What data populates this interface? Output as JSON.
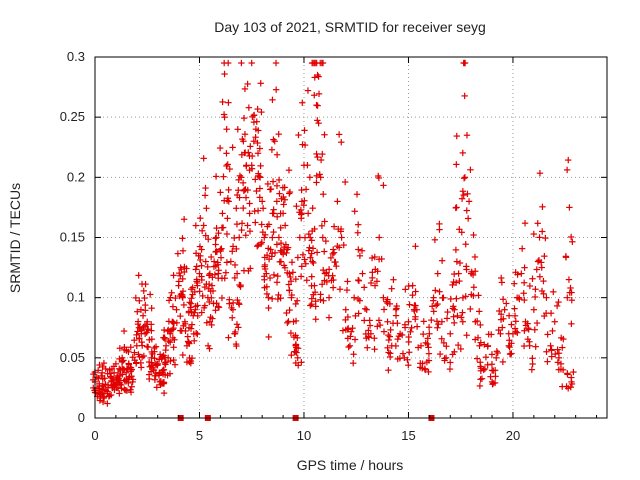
{
  "chart_data": {
    "type": "scatter",
    "title": "Day 103 of 2021, SRMTID for receiver seyg",
    "xlabel": "GPS time / hours",
    "ylabel": "SRMTID / TECUs",
    "xlim": [
      0,
      24.5
    ],
    "ylim": [
      0,
      0.3
    ],
    "xticks": [
      0,
      5,
      10,
      15,
      20
    ],
    "yticks": [
      0,
      0.05,
      0.1,
      0.15,
      0.2,
      0.25,
      0.3
    ],
    "xtick_labels": [
      "0",
      "5",
      "10",
      "15",
      "20"
    ],
    "ytick_labels": [
      "0",
      "0.05",
      "0.1",
      "0.15",
      "0.2",
      "0.25",
      "0.3"
    ],
    "grid": true,
    "marker": "+",
    "color": "#e00000",
    "zero_markers_x": [
      4.1,
      5.4,
      9.6,
      16.1
    ],
    "series": [
      {
        "name": "SRMTID",
        "points": [
          [
            0.0,
            0.03
          ],
          [
            0.1,
            0.025
          ],
          [
            0.2,
            0.02
          ],
          [
            0.3,
            0.035
          ],
          [
            0.4,
            0.018
          ],
          [
            0.5,
            0.028
          ],
          [
            0.6,
            0.022
          ],
          [
            0.7,
            0.04
          ],
          [
            0.8,
            0.03
          ],
          [
            0.9,
            0.026
          ],
          [
            1.0,
            0.045
          ],
          [
            1.1,
            0.035
          ],
          [
            1.2,
            0.028
          ],
          [
            1.3,
            0.05
          ],
          [
            1.4,
            0.04
          ],
          [
            1.5,
            0.032
          ],
          [
            1.6,
            0.055
          ],
          [
            1.7,
            0.042
          ],
          [
            1.8,
            0.03
          ],
          [
            1.9,
            0.048
          ],
          [
            2.0,
            0.06
          ],
          [
            2.1,
            0.075
          ],
          [
            2.2,
            0.09
          ],
          [
            2.3,
            0.085
          ],
          [
            2.4,
            0.07
          ],
          [
            2.5,
            0.08
          ],
          [
            2.6,
            0.065
          ],
          [
            2.7,
            0.05
          ],
          [
            2.8,
            0.04
          ],
          [
            2.9,
            0.035
          ],
          [
            3.0,
            0.045
          ],
          [
            3.1,
            0.03
          ],
          [
            3.2,
            0.05
          ],
          [
            3.3,
            0.04
          ],
          [
            3.4,
            0.06
          ],
          [
            3.5,
            0.05
          ],
          [
            3.6,
            0.07
          ],
          [
            3.7,
            0.08
          ],
          [
            3.8,
            0.065
          ],
          [
            3.9,
            0.09
          ],
          [
            4.0,
            0.11
          ],
          [
            4.1,
            0.125
          ],
          [
            4.2,
            0.1
          ],
          [
            4.3,
            0.08
          ],
          [
            4.4,
            0.06
          ],
          [
            4.5,
            0.075
          ],
          [
            4.6,
            0.095
          ],
          [
            4.7,
            0.085
          ],
          [
            4.8,
            0.09
          ],
          [
            4.9,
            0.11
          ],
          [
            5.0,
            0.12
          ],
          [
            5.1,
            0.14
          ],
          [
            5.2,
            0.16
          ],
          [
            5.3,
            0.13
          ],
          [
            5.4,
            0.1
          ],
          [
            5.5,
            0.08
          ],
          [
            5.6,
            0.11
          ],
          [
            5.7,
            0.13
          ],
          [
            5.8,
            0.15
          ],
          [
            5.9,
            0.12
          ],
          [
            6.0,
            0.14
          ],
          [
            6.1,
            0.17
          ],
          [
            6.2,
            0.25
          ],
          [
            6.3,
            0.24
          ],
          [
            6.4,
            0.18
          ],
          [
            6.5,
            0.13
          ],
          [
            6.6,
            0.09
          ],
          [
            6.7,
            0.07
          ],
          [
            6.8,
            0.12
          ],
          [
            6.9,
            0.15
          ],
          [
            7.0,
            0.2
          ],
          [
            7.1,
            0.23
          ],
          [
            7.2,
            0.19
          ],
          [
            7.3,
            0.16
          ],
          [
            7.4,
            0.17
          ],
          [
            7.5,
            0.21
          ],
          [
            7.6,
            0.23
          ],
          [
            7.7,
            0.24
          ],
          [
            7.8,
            0.22
          ],
          [
            7.9,
            0.2
          ],
          [
            8.0,
            0.18
          ],
          [
            8.1,
            0.15
          ],
          [
            8.2,
            0.12
          ],
          [
            8.3,
            0.1
          ],
          [
            8.4,
            0.14
          ],
          [
            8.5,
            0.17
          ],
          [
            8.6,
            0.23
          ],
          [
            8.7,
            0.18
          ],
          [
            8.8,
            0.15
          ],
          [
            8.9,
            0.13
          ],
          [
            9.0,
            0.17
          ],
          [
            9.1,
            0.16
          ],
          [
            9.2,
            0.14
          ],
          [
            9.3,
            0.12
          ],
          [
            9.4,
            0.1
          ],
          [
            9.5,
            0.08
          ],
          [
            9.6,
            0.06
          ],
          [
            9.7,
            0.05
          ],
          [
            9.8,
            0.15
          ],
          [
            9.9,
            0.18
          ],
          [
            10.0,
            0.21
          ],
          [
            10.1,
            0.19
          ],
          [
            10.2,
            0.17
          ],
          [
            10.3,
            0.15
          ],
          [
            10.4,
            0.13
          ],
          [
            10.5,
            0.11
          ],
          [
            10.6,
            0.26
          ],
          [
            10.65,
            0.285
          ],
          [
            10.7,
            0.245
          ],
          [
            10.8,
            0.2
          ],
          [
            10.9,
            0.15
          ],
          [
            11.0,
            0.12
          ],
          [
            11.2,
            0.1
          ],
          [
            11.4,
            0.14
          ],
          [
            11.6,
            0.18
          ],
          [
            11.8,
            0.15
          ],
          [
            12.0,
            0.09
          ],
          [
            12.2,
            0.06
          ],
          [
            12.4,
            0.1
          ],
          [
            12.6,
            0.14
          ],
          [
            12.8,
            0.12
          ],
          [
            13.0,
            0.09
          ],
          [
            13.2,
            0.07
          ],
          [
            13.4,
            0.11
          ],
          [
            13.6,
            0.15
          ],
          [
            13.8,
            0.1
          ],
          [
            14.0,
            0.08
          ],
          [
            14.2,
            0.06
          ],
          [
            14.4,
            0.09
          ],
          [
            14.6,
            0.07
          ],
          [
            14.8,
            0.05
          ],
          [
            15.0,
            0.08
          ],
          [
            15.2,
            0.11
          ],
          [
            15.4,
            0.09
          ],
          [
            15.6,
            0.06
          ],
          [
            15.8,
            0.04
          ],
          [
            16.0,
            0.07
          ],
          [
            16.2,
            0.1
          ],
          [
            16.4,
            0.12
          ],
          [
            16.6,
            0.08
          ],
          [
            16.8,
            0.05
          ],
          [
            17.0,
            0.07
          ],
          [
            17.2,
            0.09
          ],
          [
            17.3,
            0.175
          ],
          [
            17.4,
            0.12
          ],
          [
            17.6,
            0.08
          ],
          [
            17.7,
            0.2
          ],
          [
            17.8,
            0.235
          ],
          [
            17.9,
            0.18
          ],
          [
            18.0,
            0.12
          ],
          [
            18.2,
            0.08
          ],
          [
            18.4,
            0.06
          ],
          [
            18.6,
            0.04
          ],
          [
            18.8,
            0.06
          ],
          [
            19.0,
            0.03
          ],
          [
            19.2,
            0.05
          ],
          [
            19.4,
            0.07
          ],
          [
            19.6,
            0.09
          ],
          [
            19.8,
            0.06
          ],
          [
            20.0,
            0.07
          ],
          [
            20.2,
            0.1
          ],
          [
            20.4,
            0.12
          ],
          [
            20.6,
            0.08
          ],
          [
            20.8,
            0.06
          ],
          [
            21.0,
            0.09
          ],
          [
            21.2,
            0.13
          ],
          [
            21.4,
            0.155
          ],
          [
            21.6,
            0.1
          ],
          [
            21.8,
            0.06
          ],
          [
            22.0,
            0.08
          ],
          [
            22.2,
            0.05
          ],
          [
            22.4,
            0.04
          ],
          [
            22.6,
            0.1
          ],
          [
            22.7,
            0.175
          ],
          [
            22.8,
            0.03
          ]
        ]
      }
    ]
  }
}
